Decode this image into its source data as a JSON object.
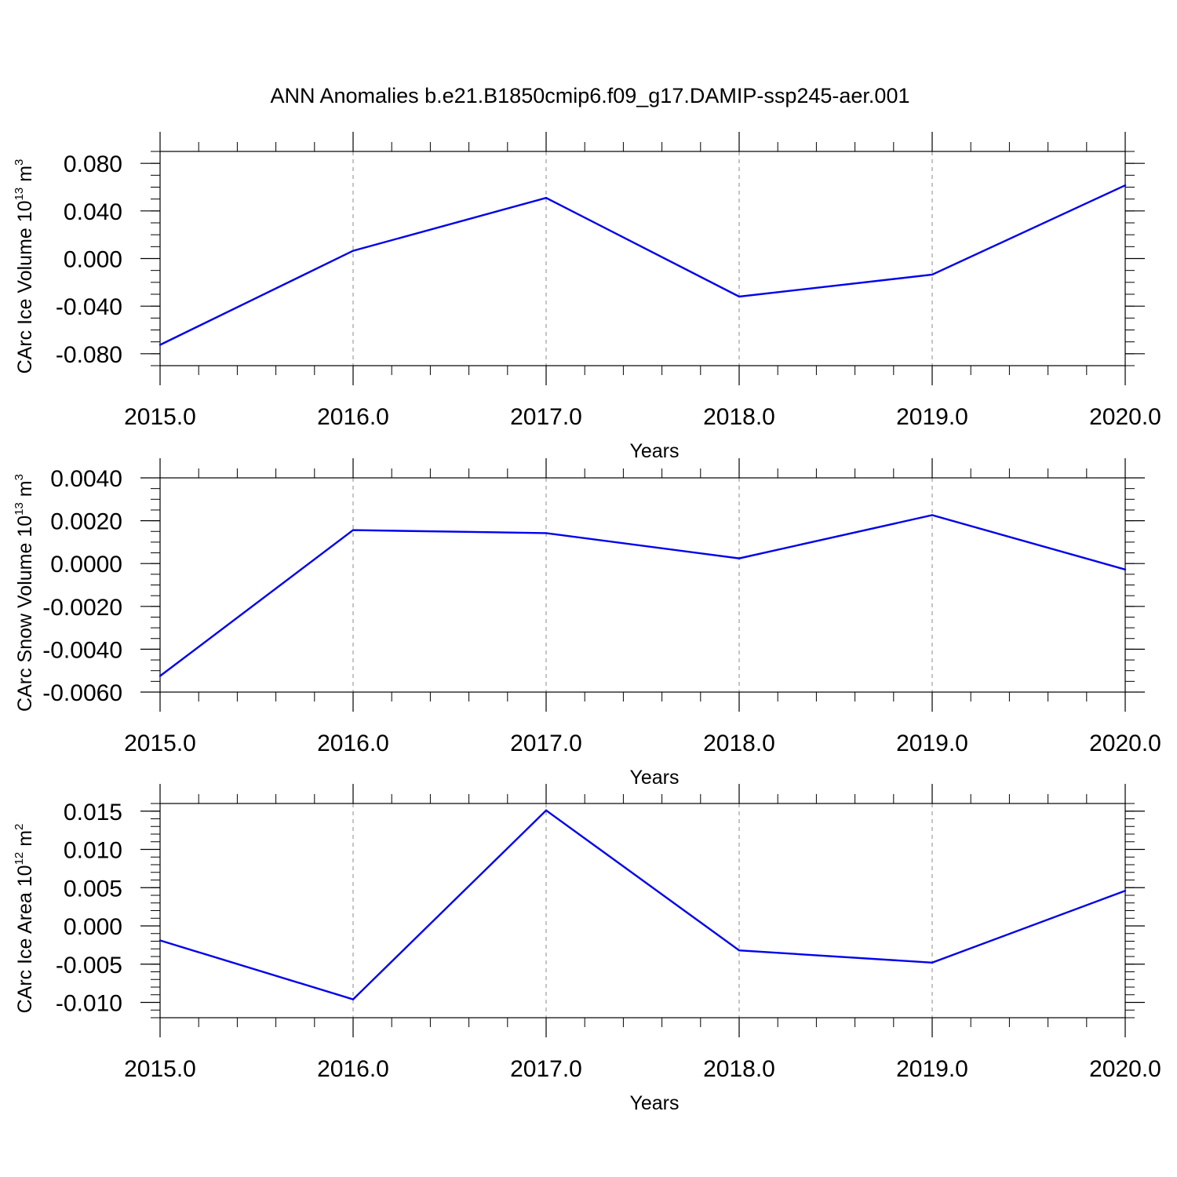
{
  "figure": {
    "title": "ANN Anomalies b.e21.B1850cmip6.f09_g17.DAMIP-ssp245-aer.001"
  },
  "colors": {
    "line": "#0000ee",
    "axis": "#000000",
    "grid": "#888888"
  },
  "chart_data": [
    {
      "type": "line",
      "xlabel": "Years",
      "ylabel": {
        "main": "CArc Ice Volume 10",
        "exp": "13",
        "unit": " m",
        "unit_exp": "3"
      },
      "xlim": [
        2015,
        2020
      ],
      "ylim": [
        -0.09,
        0.09
      ],
      "x_ticks": [
        "2015.0",
        "2016.0",
        "2017.0",
        "2018.0",
        "2019.0",
        "2020.0"
      ],
      "y_ticks": [
        "0.080",
        "0.040",
        "0.000",
        "-0.040",
        "-0.080"
      ],
      "y_tick_values": [
        0.08,
        0.04,
        0.0,
        -0.04,
        -0.08
      ],
      "y_minor_step": 0.01,
      "grid": "vertical-dashed",
      "x": [
        2015,
        2016,
        2017,
        2018,
        2019,
        2020
      ],
      "values": [
        -0.0725,
        0.0065,
        0.051,
        -0.032,
        -0.0135,
        0.0615
      ]
    },
    {
      "type": "line",
      "xlabel": "Years",
      "ylabel": {
        "main": "CArc Snow Volume 10",
        "exp": "13",
        "unit": " m",
        "unit_exp": "3"
      },
      "xlim": [
        2015,
        2020
      ],
      "ylim": [
        -0.006,
        0.004
      ],
      "x_ticks": [
        "2015.0",
        "2016.0",
        "2017.0",
        "2018.0",
        "2019.0",
        "2020.0"
      ],
      "y_ticks": [
        "0.0040",
        "0.0020",
        "0.0000",
        "-0.0020",
        "-0.0040",
        "-0.0060"
      ],
      "y_tick_values": [
        0.004,
        0.002,
        0.0,
        -0.002,
        -0.004,
        -0.006
      ],
      "y_minor_step": 0.0005,
      "grid": "vertical-dashed",
      "x": [
        2015,
        2016,
        2017,
        2018,
        2019,
        2020
      ],
      "values": [
        -0.00525,
        0.00156,
        0.00142,
        0.00024,
        0.00226,
        -0.00028
      ]
    },
    {
      "type": "line",
      "xlabel": "Years",
      "ylabel": {
        "main": "CArc Ice Area 10",
        "exp": "12",
        "unit": " m",
        "unit_exp": "2"
      },
      "xlim": [
        2015,
        2020
      ],
      "ylim": [
        -0.012,
        0.016
      ],
      "x_ticks": [
        "2015.0",
        "2016.0",
        "2017.0",
        "2018.0",
        "2019.0",
        "2020.0"
      ],
      "y_ticks": [
        "0.015",
        "0.010",
        "0.005",
        "0.000",
        "-0.005",
        "-0.010"
      ],
      "y_tick_values": [
        0.015,
        0.01,
        0.005,
        0.0,
        -0.005,
        -0.01
      ],
      "y_minor_step": 0.001,
      "grid": "vertical-dashed",
      "x": [
        2015,
        2016,
        2017,
        2018,
        2019,
        2020
      ],
      "values": [
        -0.0019,
        -0.0096,
        0.0151,
        -0.0032,
        -0.0048,
        0.0046
      ]
    }
  ]
}
